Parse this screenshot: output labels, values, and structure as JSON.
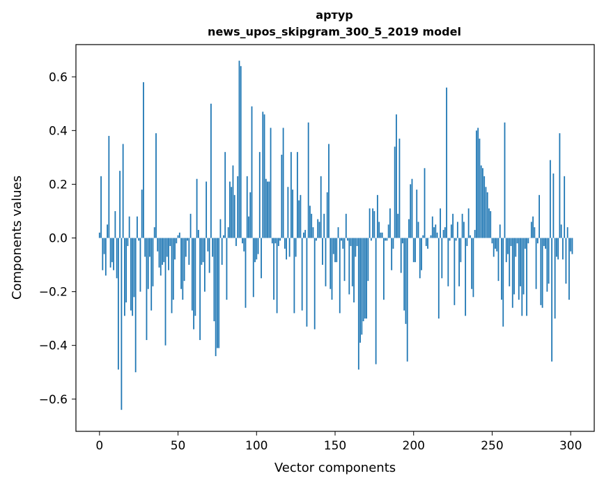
{
  "chart_data": {
    "type": "bar",
    "title": "артур",
    "subtitle": "news_upos_skipgram_300_5_2019 model",
    "xlabel": "Vector components",
    "ylabel": "Components values",
    "xlim": [
      -15,
      315
    ],
    "ylim": [
      -0.72,
      0.72
    ],
    "x_ticks": [
      0,
      50,
      100,
      150,
      200,
      250,
      300
    ],
    "y_ticks": [
      -0.6,
      -0.4,
      -0.2,
      0.0,
      0.2,
      0.4,
      0.6
    ],
    "y_tick_labels": [
      "−0.6",
      "−0.4",
      "−0.2",
      "0.0",
      "0.2",
      "0.4",
      "0.6"
    ],
    "bar_color": "#1f77b4",
    "values": [
      0.02,
      0.23,
      -0.12,
      -0.06,
      -0.14,
      0.05,
      0.38,
      -0.11,
      -0.09,
      -0.12,
      0.1,
      -0.15,
      -0.49,
      0.25,
      -0.64,
      0.35,
      -0.29,
      -0.24,
      -0.03,
      0.08,
      -0.27,
      -0.29,
      -0.22,
      -0.5,
      0.08,
      -0.01,
      -0.2,
      0.18,
      0.58,
      -0.07,
      -0.38,
      -0.19,
      -0.07,
      -0.27,
      -0.18,
      0.04,
      0.39,
      -0.05,
      -0.11,
      -0.14,
      -0.1,
      -0.09,
      -0.4,
      -0.07,
      -0.12,
      -0.03,
      -0.28,
      -0.23,
      -0.08,
      -0.02,
      0.01,
      0.02,
      -0.19,
      -0.23,
      -0.16,
      -0.07,
      -0.01,
      -0.1,
      0.09,
      -0.27,
      -0.34,
      -0.29,
      0.22,
      0.03,
      -0.38,
      -0.1,
      -0.09,
      -0.2,
      0.21,
      -0.05,
      -0.13,
      0.5,
      -0.07,
      -0.31,
      -0.44,
      -0.41,
      -0.41,
      0.07,
      -0.1,
      0.01,
      0.32,
      -0.23,
      0.04,
      0.21,
      0.19,
      0.27,
      0.16,
      -0.03,
      0.23,
      0.66,
      0.64,
      -0.02,
      -0.05,
      -0.26,
      0.23,
      0.08,
      0.17,
      0.49,
      -0.22,
      -0.09,
      -0.08,
      -0.06,
      0.32,
      -0.15,
      0.47,
      0.46,
      0.22,
      0.21,
      0.21,
      0.41,
      -0.02,
      -0.23,
      -0.02,
      -0.28,
      -0.03,
      -0.01,
      0.31,
      0.41,
      -0.04,
      -0.08,
      0.19,
      -0.07,
      0.32,
      0.18,
      -0.28,
      -0.07,
      0.32,
      0.14,
      0.16,
      -0.27,
      0.02,
      0.03,
      -0.33,
      0.43,
      0.12,
      0.09,
      0.04,
      -0.34,
      -0.01,
      0.07,
      0.06,
      0.23,
      -0.1,
      0.09,
      -0.18,
      0.17,
      0.35,
      -0.19,
      -0.23,
      -0.06,
      -0.09,
      -0.09,
      0.04,
      -0.28,
      -0.01,
      -0.04,
      -0.16,
      0.09,
      -0.01,
      -0.21,
      -0.03,
      -0.18,
      -0.24,
      -0.07,
      -0.03,
      -0.49,
      -0.39,
      -0.36,
      -0.31,
      -0.3,
      -0.3,
      -0.16,
      0.11,
      -0.01,
      0.11,
      0.1,
      -0.47,
      0.16,
      0.06,
      0.02,
      0.02,
      -0.23,
      -0.01,
      -0.01,
      0.05,
      0.11,
      -0.12,
      -0.04,
      0.34,
      0.46,
      0.09,
      0.37,
      -0.13,
      -0.02,
      -0.27,
      -0.32,
      -0.46,
      0.07,
      0.2,
      0.22,
      -0.09,
      -0.09,
      0.18,
      0.06,
      -0.15,
      -0.12,
      0.01,
      0.26,
      -0.03,
      -0.04,
      0.0,
      0.01,
      0.08,
      0.04,
      0.05,
      0.02,
      -0.3,
      0.11,
      -0.15,
      0.03,
      0.04,
      0.56,
      -0.18,
      -0.01,
      0.05,
      0.09,
      -0.25,
      -0.01,
      0.06,
      -0.18,
      -0.09,
      0.09,
      0.06,
      -0.29,
      -0.03,
      0.11,
      0.01,
      -0.19,
      -0.22,
      0.03,
      0.4,
      0.41,
      0.37,
      0.27,
      0.26,
      0.23,
      0.19,
      0.17,
      0.11,
      0.1,
      -0.02,
      -0.07,
      -0.04,
      -0.05,
      -0.16,
      0.05,
      -0.23,
      -0.33,
      0.43,
      -0.09,
      -0.06,
      -0.18,
      -0.03,
      -0.26,
      -0.21,
      -0.07,
      -0.02,
      -0.23,
      -0.18,
      -0.29,
      -0.21,
      -0.04,
      -0.29,
      -0.02,
      0.0,
      0.06,
      0.08,
      0.04,
      -0.19,
      -0.02,
      0.16,
      -0.25,
      -0.26,
      -0.03,
      -0.04,
      -0.2,
      -0.17,
      0.29,
      -0.46,
      0.24,
      -0.3,
      -0.07,
      -0.08,
      0.39,
      0.05,
      -0.08,
      0.23,
      -0.17,
      0.04,
      -0.23,
      -0.05,
      -0.06
    ]
  }
}
